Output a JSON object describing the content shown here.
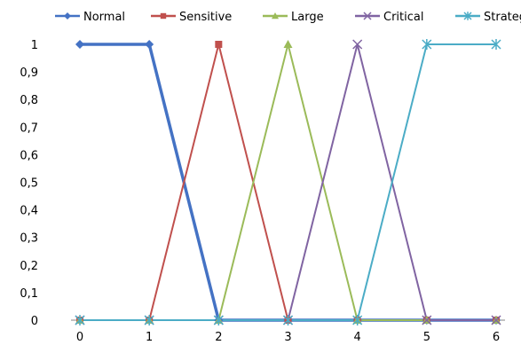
{
  "chart_data": {
    "type": "line",
    "x": [
      0,
      1,
      2,
      3,
      4,
      5,
      6
    ],
    "series": [
      {
        "name": "Normal",
        "values": [
          1,
          1,
          0,
          0,
          0,
          0,
          0
        ],
        "color": "#4472C4",
        "marker": "diamond"
      },
      {
        "name": "Sensitive",
        "values": [
          0,
          0,
          1,
          0,
          0,
          0,
          0
        ],
        "color": "#C0504D",
        "marker": "square"
      },
      {
        "name": "Large",
        "values": [
          0,
          0,
          0,
          1,
          0,
          0,
          0
        ],
        "color": "#9BBB59",
        "marker": "triangle"
      },
      {
        "name": "Critical",
        "values": [
          0,
          0,
          0,
          0,
          1,
          0,
          0
        ],
        "color": "#8064A2",
        "marker": "x"
      },
      {
        "name": "Strategic",
        "values": [
          0,
          0,
          0,
          0,
          0,
          1,
          1
        ],
        "color": "#4BACC6",
        "marker": "star"
      }
    ],
    "xlim": [
      0,
      6
    ],
    "ylim": [
      0,
      1
    ],
    "y_ticks": [
      "0",
      "0,1",
      "0,2",
      "0,3",
      "0,4",
      "0,5",
      "0,6",
      "0,7",
      "0,8",
      "0,9",
      "1"
    ],
    "x_ticks": [
      "0",
      "1",
      "2",
      "3",
      "4",
      "5",
      "6"
    ],
    "title": "",
    "xlabel": "",
    "ylabel": "",
    "grid": false,
    "legend_position": "top"
  }
}
